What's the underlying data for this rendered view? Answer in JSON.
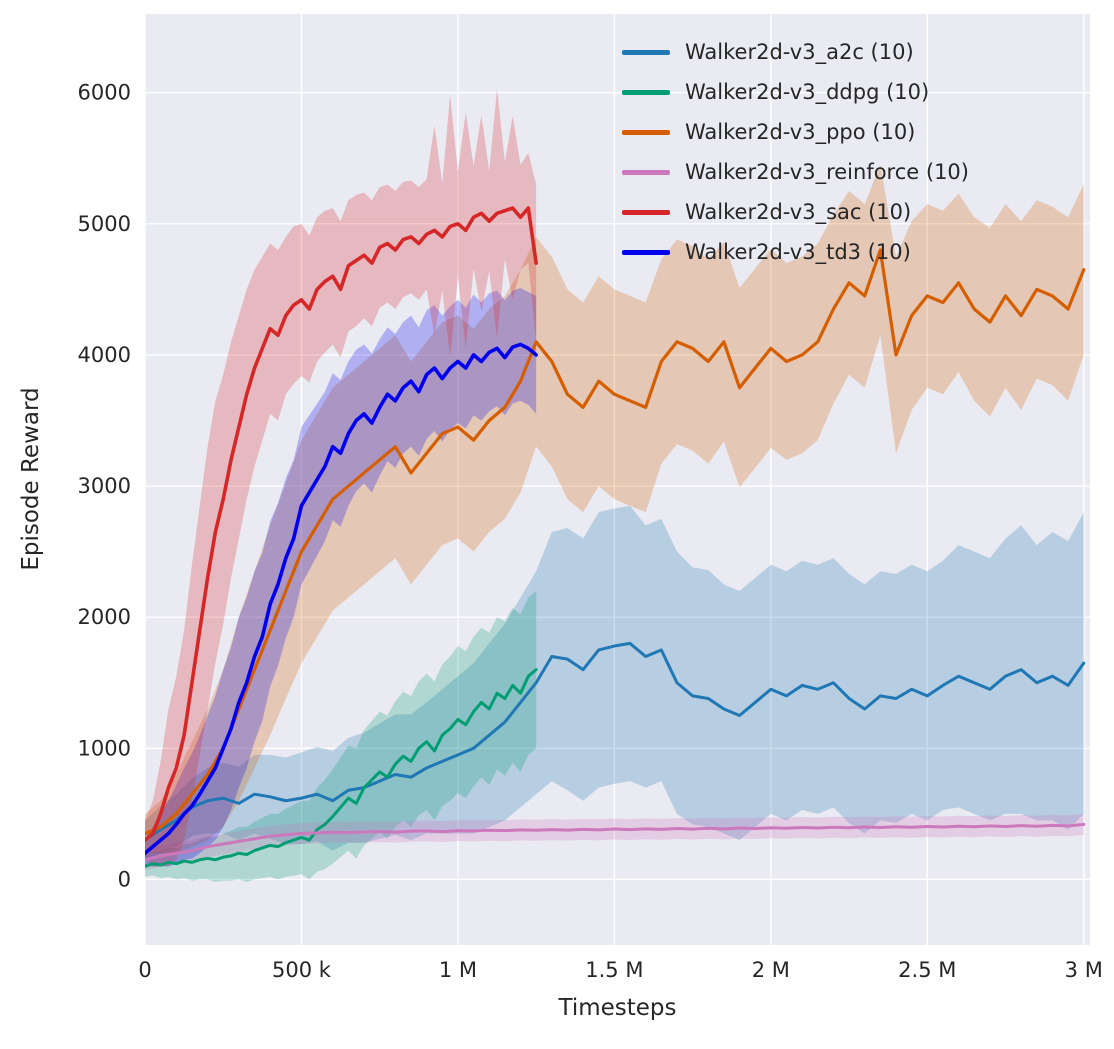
{
  "figure": {
    "background": "#ffffff",
    "plot_background": "#eaeaf2",
    "grid_color": "#ffffff",
    "text_color": "#262626"
  },
  "chart_data": {
    "type": "line",
    "title": "",
    "xlabel": "Timesteps",
    "ylabel": "Episode Reward",
    "xlim": [
      0,
      3020000
    ],
    "ylim": [
      -500,
      6600
    ],
    "grid": true,
    "legend_position": "upper right",
    "band_opacity": 0.25,
    "x_ticks": [
      {
        "v": 0,
        "label": "0"
      },
      {
        "v": 500000,
        "label": "500 k"
      },
      {
        "v": 1000000,
        "label": "1 M"
      },
      {
        "v": 1500000,
        "label": "1.5 M"
      },
      {
        "v": 2000000,
        "label": "2 M"
      },
      {
        "v": 2500000,
        "label": "2.5 M"
      },
      {
        "v": 3000000,
        "label": "3 M"
      }
    ],
    "y_ticks": [
      {
        "v": 0,
        "label": "0"
      },
      {
        "v": 1000,
        "label": "1000"
      },
      {
        "v": 2000,
        "label": "2000"
      },
      {
        "v": 3000,
        "label": "3000"
      },
      {
        "v": 4000,
        "label": "4000"
      },
      {
        "v": 5000,
        "label": "5000"
      },
      {
        "v": 6000,
        "label": "6000"
      }
    ],
    "series": [
      {
        "key": "a2c",
        "name": "Walker2d-v3_a2c (10)",
        "color": "#1f77b4",
        "linewidth": 3,
        "x0": 0,
        "dx": 50000,
        "mean": [
          300,
          380,
          450,
          550,
          600,
          620,
          580,
          650,
          630,
          600,
          620,
          650,
          600,
          680,
          700,
          750,
          800,
          780,
          850,
          900,
          950,
          1000,
          1100,
          1200,
          1350,
          1500,
          1700,
          1680,
          1600,
          1750,
          1780,
          1800,
          1700,
          1750,
          1500,
          1400,
          1380,
          1300,
          1250,
          1350,
          1450,
          1400,
          1480,
          1450,
          1500,
          1380,
          1300,
          1400,
          1380,
          1450,
          1400,
          1480,
          1550,
          1500,
          1450,
          1550,
          1600,
          1500,
          1550,
          1480,
          1650
        ],
        "band": [
          150,
          180,
          200,
          220,
          250,
          270,
          280,
          300,
          320,
          330,
          350,
          360,
          380,
          400,
          420,
          440,
          460,
          480,
          500,
          550,
          600,
          650,
          700,
          750,
          800,
          850,
          950,
          1000,
          1000,
          1050,
          1050,
          1050,
          1000,
          1000,
          1000,
          980,
          980,
          950,
          950,
          950,
          950,
          950,
          950,
          950,
          950,
          950,
          950,
          950,
          950,
          950,
          950,
          950,
          1000,
          1000,
          1000,
          1050,
          1100,
          1050,
          1100,
          1100,
          1150
        ]
      },
      {
        "key": "ddpg",
        "name": "Walker2d-v3_ddpg (10)",
        "color": "#029e73",
        "linewidth": 3,
        "x0": 0,
        "dx": 25000,
        "mean": [
          100,
          120,
          110,
          130,
          120,
          140,
          130,
          150,
          160,
          150,
          170,
          180,
          200,
          190,
          220,
          240,
          260,
          250,
          280,
          300,
          320,
          300,
          380,
          420,
          480,
          550,
          620,
          580,
          700,
          760,
          820,
          780,
          880,
          940,
          900,
          1000,
          1050,
          980,
          1100,
          1150,
          1220,
          1180,
          1280,
          1350,
          1300,
          1420,
          1380,
          1480,
          1420,
          1550,
          1600
        ],
        "band": [
          80,
          90,
          100,
          110,
          120,
          130,
          140,
          150,
          160,
          170,
          180,
          190,
          200,
          210,
          220,
          230,
          240,
          250,
          260,
          270,
          280,
          300,
          320,
          340,
          360,
          380,
          400,
          420,
          440,
          450,
          460,
          470,
          480,
          490,
          500,
          510,
          520,
          530,
          540,
          550,
          560,
          560,
          570,
          570,
          580,
          580,
          590,
          590,
          600,
          600,
          600
        ]
      },
      {
        "key": "ppo",
        "name": "Walker2d-v3_ppo (10)",
        "color": "#d55e00",
        "linewidth": 3.2,
        "x0": 0,
        "dx": 50000,
        "mean": [
          350,
          400,
          500,
          650,
          800,
          1000,
          1300,
          1600,
          1900,
          2200,
          2500,
          2700,
          2900,
          3000,
          3100,
          3200,
          3300,
          3100,
          3250,
          3400,
          3450,
          3350,
          3500,
          3600,
          3800,
          4100,
          3950,
          3700,
          3600,
          3800,
          3700,
          3650,
          3600,
          3950,
          4100,
          4050,
          3950,
          4100,
          3750,
          3900,
          4050,
          3950,
          4000,
          4100,
          4350,
          4550,
          4450,
          4800,
          4000,
          4300,
          4450,
          4400,
          4550,
          4350,
          4250,
          4450,
          4300,
          4500,
          4450,
          4350,
          4650
        ],
        "band": [
          150,
          200,
          300,
          400,
          500,
          600,
          700,
          750,
          800,
          820,
          850,
          850,
          850,
          850,
          850,
          850,
          850,
          850,
          850,
          850,
          850,
          850,
          850,
          850,
          850,
          800,
          800,
          800,
          800,
          800,
          800,
          800,
          800,
          780,
          780,
          780,
          780,
          760,
          760,
          760,
          760,
          750,
          750,
          750,
          720,
          700,
          700,
          650,
          750,
          720,
          700,
          700,
          680,
          700,
          720,
          700,
          720,
          680,
          680,
          700,
          650
        ]
      },
      {
        "key": "reinforce",
        "name": "Walker2d-v3_reinforce (10)",
        "color": "#cc78bc",
        "linewidth": 3,
        "x0": 0,
        "dx": 50000,
        "mean": [
          150,
          180,
          200,
          220,
          250,
          270,
          290,
          310,
          330,
          340,
          350,
          355,
          360,
          358,
          362,
          365,
          360,
          368,
          370,
          365,
          372,
          370,
          375,
          372,
          378,
          375,
          380,
          376,
          382,
          378,
          385,
          380,
          386,
          382,
          388,
          384,
          390,
          385,
          392,
          388,
          394,
          390,
          396,
          392,
          398,
          394,
          400,
          396,
          402,
          398,
          404,
          400,
          406,
          402,
          408,
          404,
          410,
          406,
          412,
          408,
          420
        ],
        "band": 80
      },
      {
        "key": "sac",
        "name": "Walker2d-v3_sac (10)",
        "color": "#d62728",
        "linewidth": 3.6,
        "x0": 0,
        "dx": 25000,
        "mean": [
          300,
          350,
          500,
          700,
          850,
          1100,
          1500,
          1900,
          2300,
          2650,
          2900,
          3200,
          3450,
          3700,
          3900,
          4050,
          4200,
          4150,
          4300,
          4380,
          4420,
          4350,
          4500,
          4560,
          4600,
          4500,
          4680,
          4720,
          4760,
          4700,
          4820,
          4850,
          4800,
          4880,
          4900,
          4850,
          4920,
          4950,
          4900,
          4980,
          5000,
          4950,
          5050,
          5080,
          5020,
          5080,
          5100,
          5120,
          5050,
          5120,
          4700
        ],
        "band": [
          150,
          250,
          400,
          600,
          700,
          800,
          900,
          950,
          1000,
          1000,
          950,
          900,
          850,
          800,
          750,
          700,
          650,
          650,
          600,
          600,
          580,
          560,
          550,
          540,
          520,
          520,
          500,
          500,
          480,
          480,
          460,
          450,
          450,
          440,
          430,
          430,
          420,
          800,
          410,
          1000,
          400,
          900,
          390,
          750,
          380,
          950,
          370,
          700,
          400,
          420,
          600
        ]
      },
      {
        "key": "td3",
        "name": "Walker2d-v3_td3 (10)",
        "color": "#0000ee",
        "linewidth": 3.6,
        "x0": 0,
        "dx": 25000,
        "mean": [
          200,
          250,
          300,
          350,
          420,
          500,
          560,
          650,
          750,
          850,
          1000,
          1150,
          1350,
          1500,
          1700,
          1850,
          2100,
          2250,
          2450,
          2600,
          2850,
          2950,
          3050,
          3150,
          3300,
          3250,
          3400,
          3500,
          3550,
          3480,
          3600,
          3700,
          3650,
          3750,
          3800,
          3720,
          3850,
          3900,
          3820,
          3900,
          3950,
          3900,
          4000,
          3950,
          4020,
          4050,
          3980,
          4060,
          4080,
          4050,
          4000
        ],
        "band": [
          100,
          150,
          200,
          250,
          300,
          350,
          400,
          450,
          500,
          550,
          600,
          620,
          650,
          650,
          650,
          640,
          630,
          620,
          610,
          600,
          600,
          590,
          580,
          570,
          560,
          560,
          550,
          540,
          530,
          530,
          520,
          510,
          510,
          500,
          500,
          490,
          490,
          480,
          480,
          470,
          470,
          460,
          460,
          450,
          450,
          440,
          440,
          430,
          430,
          430,
          450
        ]
      }
    ]
  }
}
